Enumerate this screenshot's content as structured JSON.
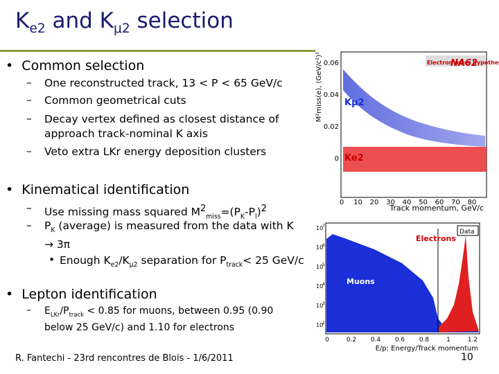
{
  "header": {
    "title": [
      "K",
      "e2",
      " and K",
      "μ2",
      " selection"
    ]
  },
  "bullets": [
    {
      "text": "Common selection",
      "items": [
        [
          "One reconstructed track, 13 < P < 65 GeV/c"
        ],
        [
          "Common geometrical cuts"
        ],
        [
          "Decay vertex defined as closest distance of approach track-nominal K axis"
        ],
        [
          "Veto extra LKr energy deposition  clusters"
        ]
      ]
    },
    {
      "text": "Kinematical identification",
      "items": [
        [
          "Use missing mass squared M",
          "2",
          "miss",
          "=(P",
          "K",
          "-P",
          "l",
          ")",
          "2"
        ],
        [
          "P",
          "K",
          " (average) is measured from the data with K → 3π"
        ]
      ],
      "subitem": [
        "Enough K",
        "e2",
        "/K",
        "μ2",
        " separation for P",
        "track",
        "< 25 GeV/c"
      ]
    },
    {
      "text": "Lepton identification",
      "items": [
        [
          "E",
          "LKr",
          "/P",
          "track",
          " < 0.85 for muons, between 0.95 (0.90 below 25 GeV/c) and 1.10 for electrons"
        ]
      ]
    }
  ],
  "plot_top": {
    "experiment": "NA62",
    "note": "Electron mass hypothesis!",
    "label_kmu2": "Kμ2",
    "label_ke2": "Ke2",
    "ylabel": "M²miss(e), (GeV/c²)²",
    "xlabel": "Track momentum, GeV/c",
    "yticks": [
      "0.06",
      "0.04",
      "0.02",
      "0"
    ],
    "xticks": [
      "0",
      "10",
      "20",
      "30",
      "40",
      "50",
      "60",
      "70",
      "80"
    ]
  },
  "plot_bottom": {
    "legend": "Data",
    "label_electrons": "Electrons",
    "label_muons": "Muons",
    "xlabel": "E/p: Energy/Track momentum",
    "xticks": [
      "0",
      "0.2",
      "0.4",
      "0.6",
      "0.8",
      "1",
      "1.2"
    ],
    "yticks": [
      [
        "10",
        "7"
      ],
      [
        "10",
        "6"
      ],
      [
        "10",
        "5"
      ],
      [
        "10",
        "4"
      ],
      [
        "10",
        "3"
      ],
      [
        "10",
        "2"
      ]
    ]
  },
  "footer": {
    "credit": "R. Fantechi - 23rd rencontres de Blois - 1/6/2011",
    "page": "10"
  }
}
